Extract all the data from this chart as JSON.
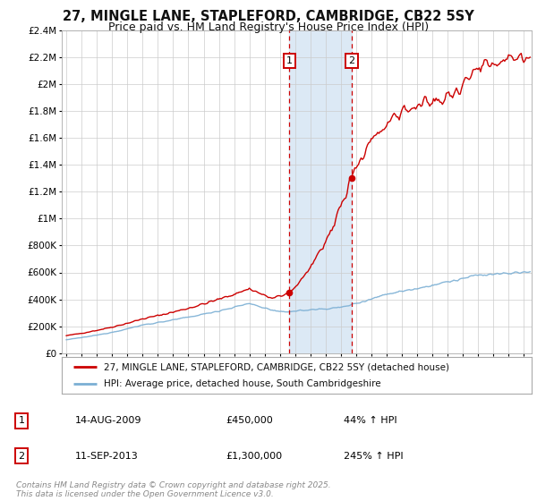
{
  "title": "27, MINGLE LANE, STAPLEFORD, CAMBRIDGE, CB22 5SY",
  "subtitle": "Price paid vs. HM Land Registry's House Price Index (HPI)",
  "legend_label_red": "27, MINGLE LANE, STAPLEFORD, CAMBRIDGE, CB22 5SY (detached house)",
  "legend_label_blue": "HPI: Average price, detached house, South Cambridgeshire",
  "footer": "Contains HM Land Registry data © Crown copyright and database right 2025.\nThis data is licensed under the Open Government Licence v3.0.",
  "annotation1_label": "1",
  "annotation1_date": "14-AUG-2009",
  "annotation1_price": "£450,000",
  "annotation1_hpi": "44% ↑ HPI",
  "annotation1_year": 2009.617,
  "annotation1_value": 450000,
  "annotation2_label": "2",
  "annotation2_date": "11-SEP-2013",
  "annotation2_price": "£1,300,000",
  "annotation2_hpi": "245% ↑ HPI",
  "annotation2_year": 2013.7,
  "annotation2_value": 1300000,
  "shade_start": 2009.617,
  "shade_end": 2013.7,
  "ylim_max": 2400000,
  "ylim_min": 0,
  "xmin": 1994.7,
  "xmax": 2025.5,
  "red_color": "#cc0000",
  "blue_color": "#7bafd4",
  "shade_color": "#dce9f5",
  "background_color": "#ffffff",
  "grid_color": "#cccccc",
  "title_fontsize": 10.5,
  "subtitle_fontsize": 9,
  "axis_fontsize": 7.5,
  "legend_fontsize": 8,
  "footer_fontsize": 6.5
}
